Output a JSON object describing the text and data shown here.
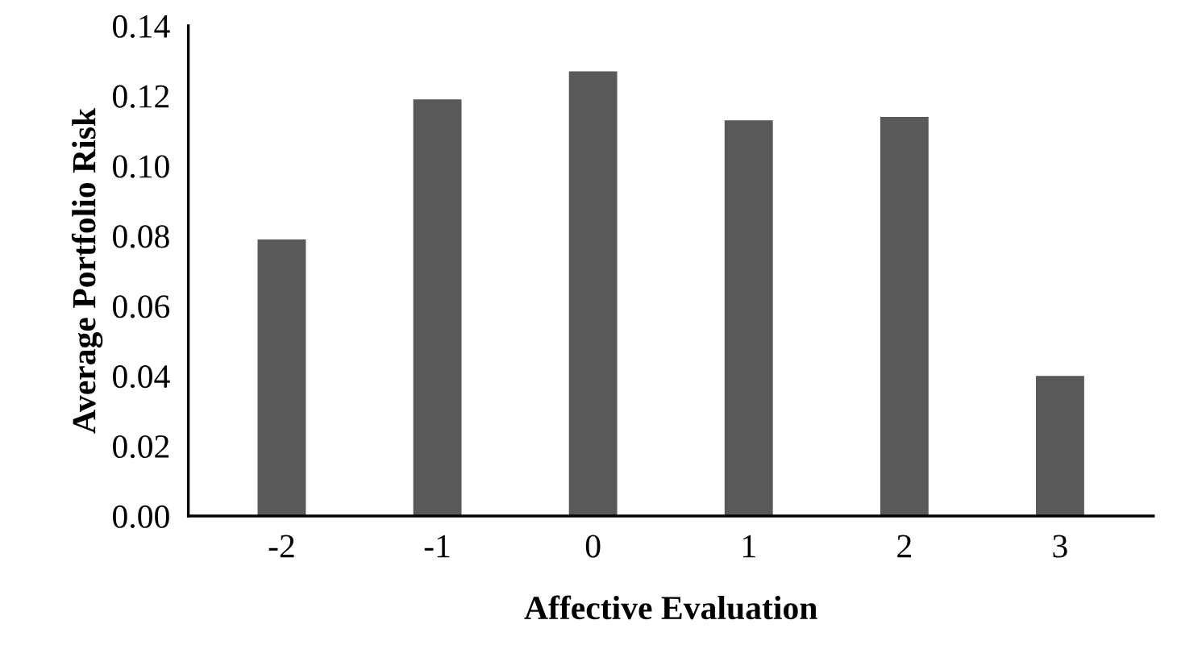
{
  "chart_data": {
    "type": "bar",
    "xlabel": "Affective Evaluation",
    "ylabel": "Average Portfolio Risk",
    "categories": [
      "-2",
      "-1",
      "0",
      "1",
      "2",
      "3"
    ],
    "values": [
      0.079,
      0.119,
      0.127,
      0.113,
      0.114,
      0.04
    ],
    "color": "#595959",
    "ylim": [
      0,
      0.14
    ],
    "yticks": [
      {
        "value": 0,
        "label": "0.00"
      },
      {
        "value": 0.02,
        "label": "0.02"
      },
      {
        "value": 0.04,
        "label": "0.04"
      },
      {
        "value": 0.06,
        "label": "0.06"
      },
      {
        "value": 0.08,
        "label": "0.08"
      },
      {
        "value": 0.1,
        "label": "0.10"
      },
      {
        "value": 0.12,
        "label": "0.12"
      },
      {
        "value": 0.14,
        "label": "0.14"
      }
    ],
    "grid": false,
    "legend": false
  }
}
